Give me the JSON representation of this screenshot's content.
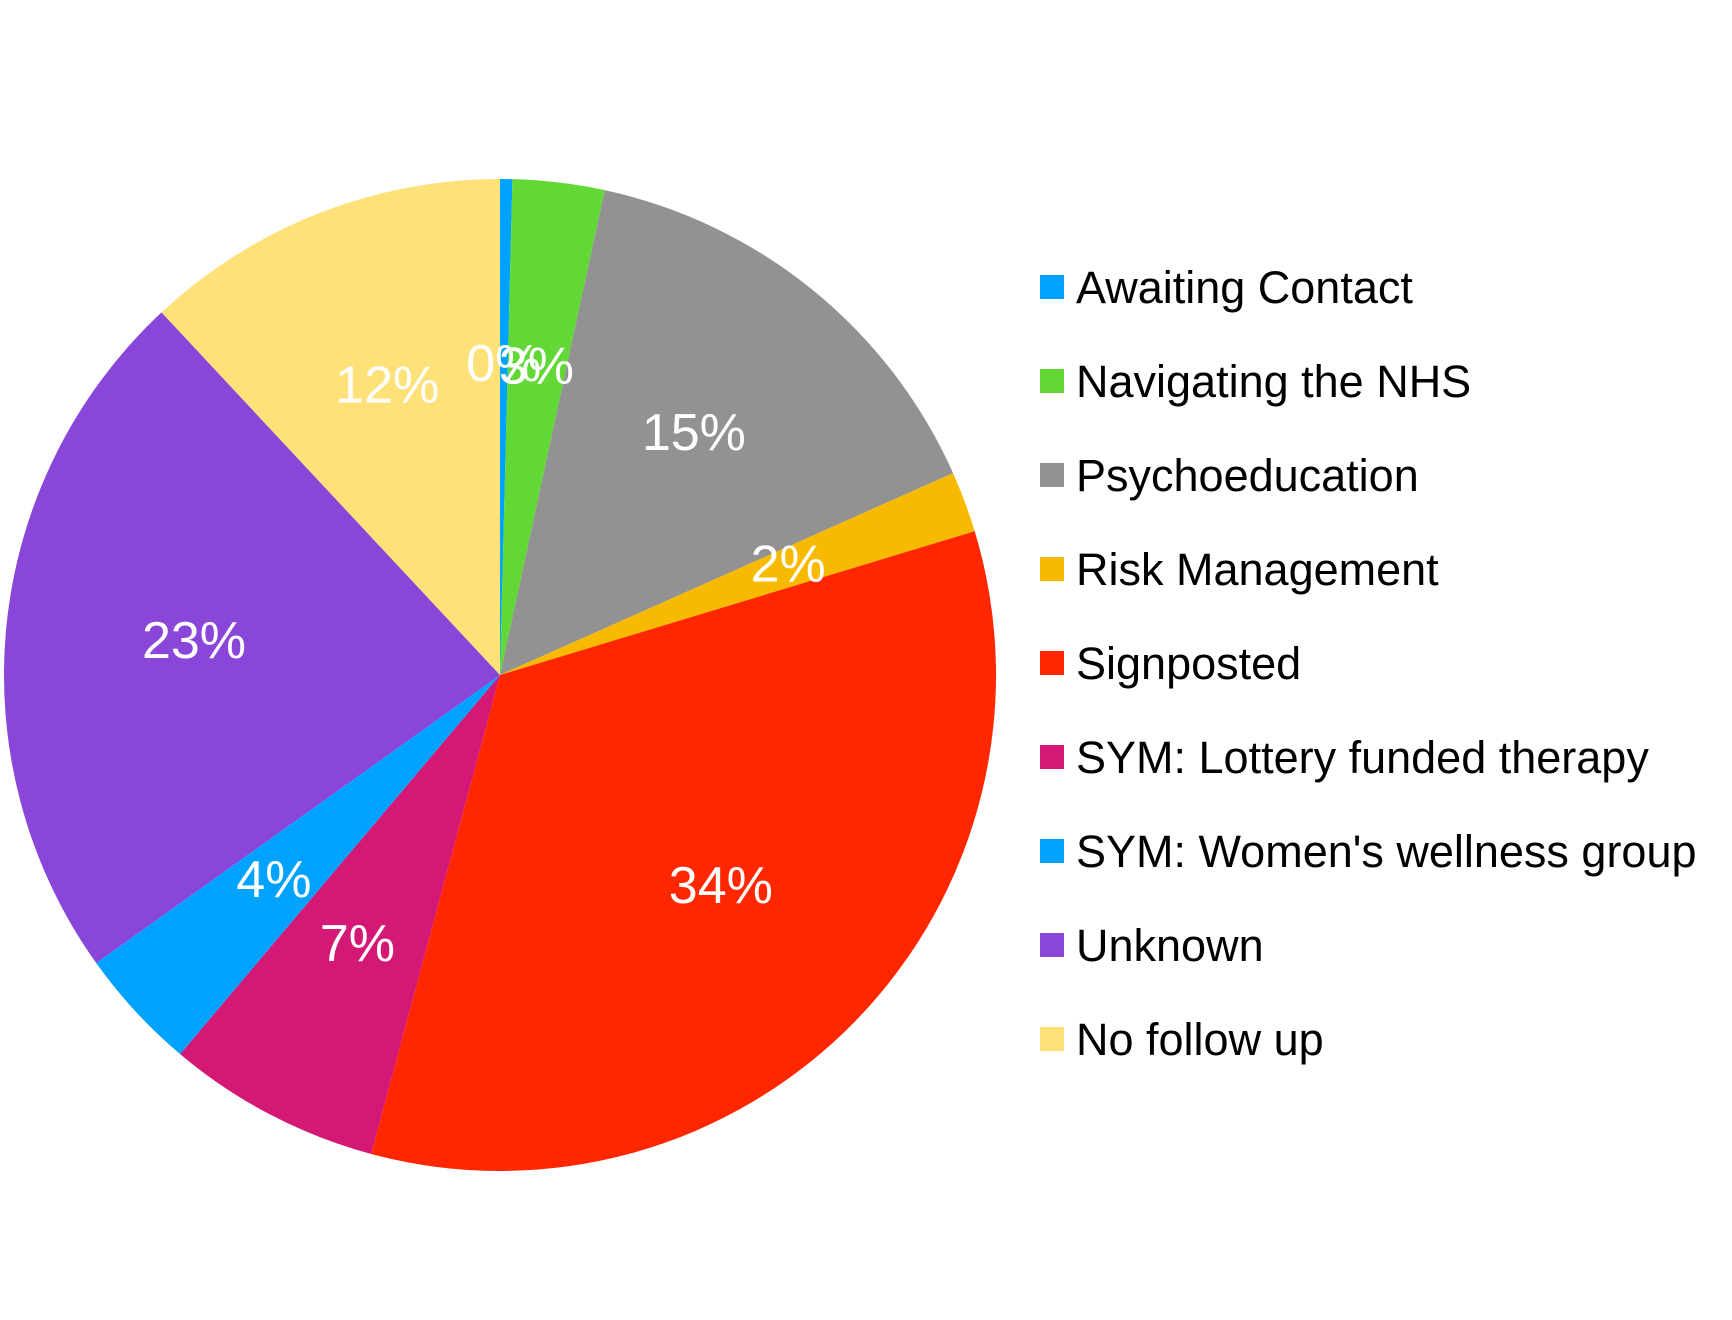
{
  "chart_data": {
    "type": "pie",
    "title": "",
    "start_angle_deg": 0,
    "direction": "clockwise",
    "legend_position": "right",
    "slices": [
      {
        "label": "Awaiting Contact",
        "value": 0.4,
        "display": "0%",
        "color": "#00A2FF"
      },
      {
        "label": "Navigating the NHS",
        "value": 3,
        "display": "3%",
        "color": "#61D836"
      },
      {
        "label": "Psychoeducation",
        "value": 15,
        "display": "15%",
        "color": "#929292"
      },
      {
        "label": "Risk Management",
        "value": 2,
        "display": "2%",
        "color": "#F8BA00"
      },
      {
        "label": "Signposted",
        "value": 34,
        "display": "34%",
        "color": "#FF2600"
      },
      {
        "label": "SYM: Lottery funded therapy",
        "value": 7,
        "display": "7%",
        "color": "#D41876"
      },
      {
        "label": "SYM: Women's wellness group",
        "value": 4,
        "display": "4%",
        "color": "#00A2FF"
      },
      {
        "label": "Unknown",
        "value": 23,
        "display": "23%",
        "color": "#8A45D9"
      },
      {
        "label": "No follow up",
        "value": 12,
        "display": "12%",
        "color": "#FFE17A"
      }
    ]
  }
}
